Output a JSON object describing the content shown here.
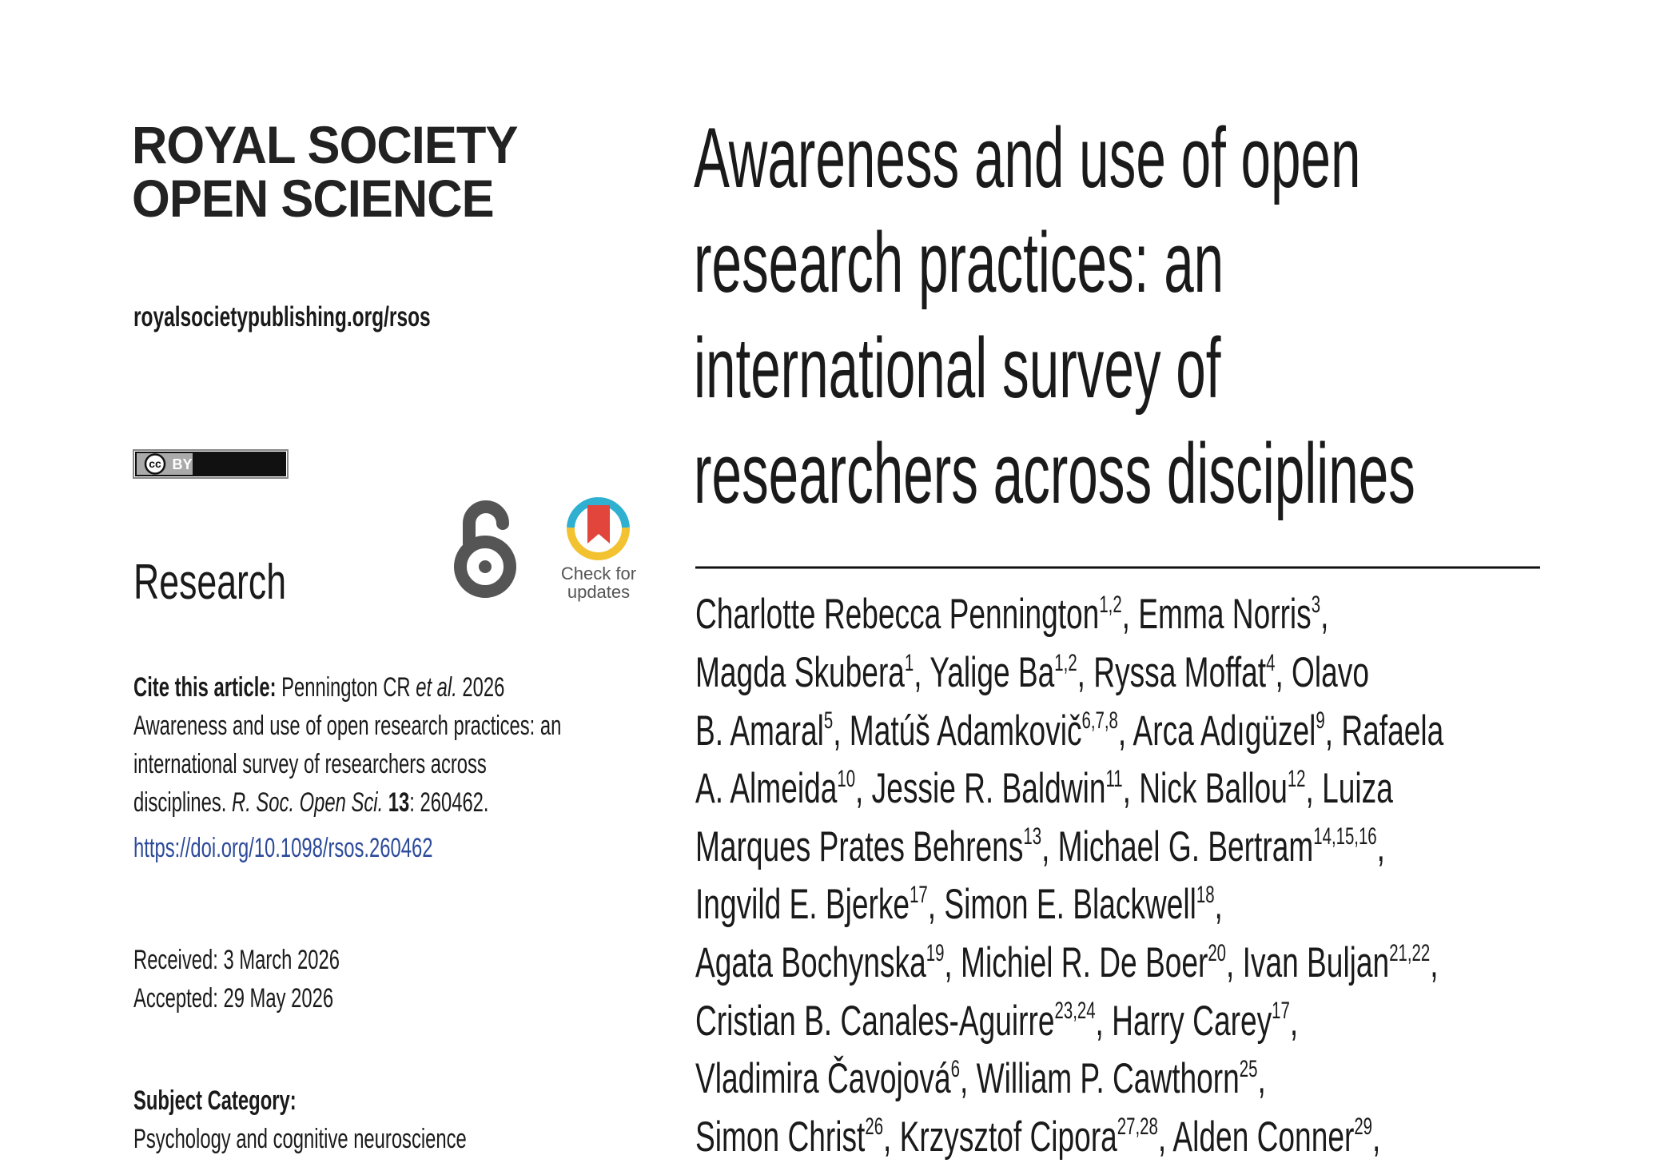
{
  "journal": {
    "line1": "ROYAL SOCIETY",
    "line2": "OPEN SCIENCE",
    "url": "royalsocietypublishing.org/rsos"
  },
  "license": {
    "cc": "cc",
    "by": "BY"
  },
  "section": "Research",
  "check_updates": {
    "line1": "Check for",
    "line2": "updates"
  },
  "cite": [
    [
      {
        "text": "Cite this article:",
        "style": "bold"
      },
      {
        "text": " Pennington CR "
      },
      {
        "text": "et al.",
        "style": "italic"
      },
      {
        "text": " 2026"
      }
    ],
    [
      {
        "text": "Awareness and use of open research practices: an"
      }
    ],
    [
      {
        "text": "international survey of researchers across"
      }
    ],
    [
      {
        "text": "disciplines. "
      },
      {
        "text": "R. Soc. Open Sci. ",
        "style": "italic"
      },
      {
        "text": "13",
        "style": "bold"
      },
      {
        "text": ": 260462."
      }
    ]
  ],
  "doi": "https://doi.org/10.1098/rsos.260462",
  "received": "Received: 3 March 2026",
  "accepted": "Accepted: 29 May 2026",
  "subject": {
    "heading": "Subject Category:",
    "value": "Psychology and cognitive neuroscience"
  },
  "title": [
    "Awareness and use of open",
    "research practices: an",
    "international survey of",
    "researchers across disciplines"
  ],
  "authors": [
    [
      {
        "text": "Charlotte Rebecca Pennington",
        "sup": "1,2"
      },
      {
        "text": ", Emma Norris",
        "sup": "3"
      },
      {
        "text": ","
      }
    ],
    [
      {
        "text": "Magda Skubera",
        "sup": "1"
      },
      {
        "text": ", Yalige Ba",
        "sup": "1,2"
      },
      {
        "text": ", Ryssa Moffat",
        "sup": "4"
      },
      {
        "text": ", Olavo"
      }
    ],
    [
      {
        "text": "B. Amaral",
        "sup": "5"
      },
      {
        "text": ", Matúš Adamkovič",
        "sup": "6,7,8"
      },
      {
        "text": ", Arca Adıgüzel",
        "sup": "9"
      },
      {
        "text": ", Rafaela"
      }
    ],
    [
      {
        "text": "A. Almeida",
        "sup": "10"
      },
      {
        "text": ", Jessie R. Baldwin",
        "sup": "11"
      },
      {
        "text": ", Nick Ballou",
        "sup": "12"
      },
      {
        "text": ", Luiza"
      }
    ],
    [
      {
        "text": "Marques Prates Behrens",
        "sup": "13"
      },
      {
        "text": ", Michael G. Bertram",
        "sup": "14,15,16"
      },
      {
        "text": ","
      }
    ],
    [
      {
        "text": "Ingvild E. Bjerke",
        "sup": "17"
      },
      {
        "text": ", Simon E. Blackwell",
        "sup": "18"
      },
      {
        "text": ","
      }
    ],
    [
      {
        "text": "Agata Bochynska",
        "sup": "19"
      },
      {
        "text": ", Michiel R. De Boer",
        "sup": "20"
      },
      {
        "text": ", Ivan Buljan",
        "sup": "21,22"
      },
      {
        "text": ","
      }
    ],
    [
      {
        "text": "Cristian B. Canales-Aguirre",
        "sup": "23,24"
      },
      {
        "text": ", Harry Carey",
        "sup": "17"
      },
      {
        "text": ","
      }
    ],
    [
      {
        "text": "Vladimira Čavojová",
        "sup": "6"
      },
      {
        "text": ", William P. Cawthorn",
        "sup": "25"
      },
      {
        "text": ","
      }
    ],
    [
      {
        "text": "Simon Christ",
        "sup": "26"
      },
      {
        "text": ", Krzysztof Cipora",
        "sup": "27,28"
      },
      {
        "text": ", Alden Conner",
        "sup": "29"
      },
      {
        "text": ","
      }
    ]
  ]
}
